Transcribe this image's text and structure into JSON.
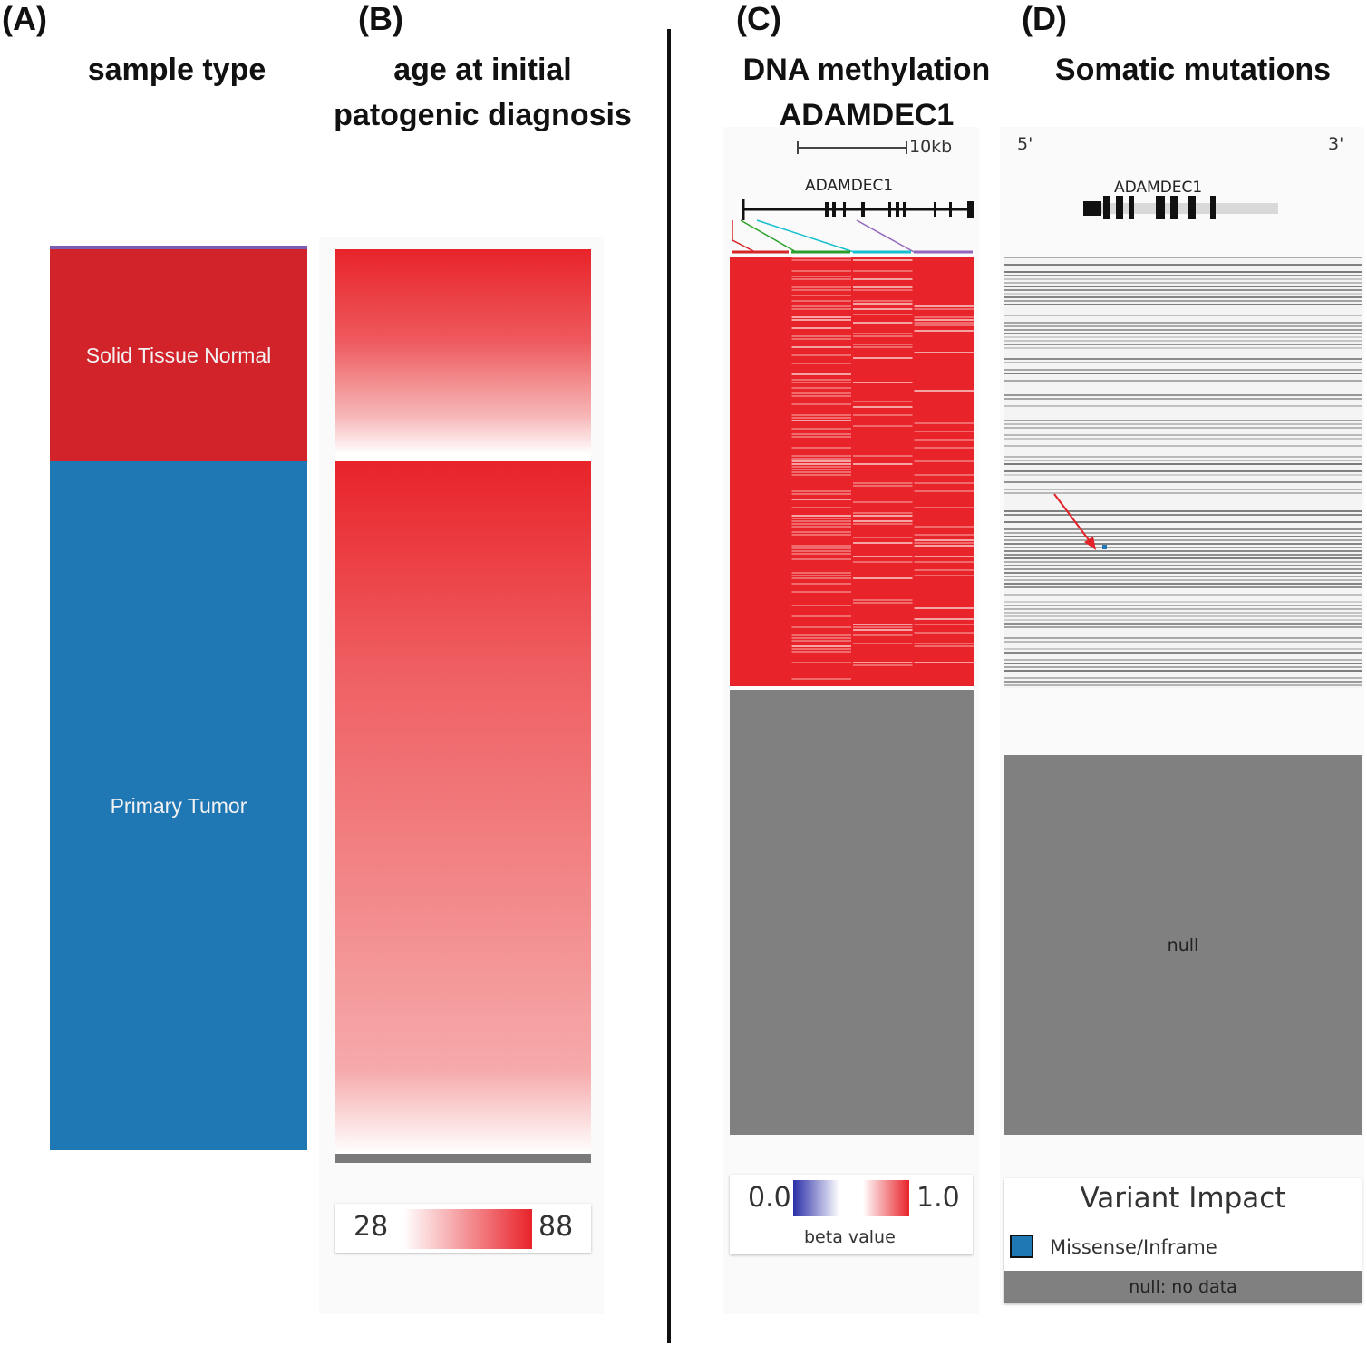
{
  "panels": {
    "a": {
      "letter": "(A)",
      "title": "sample type"
    },
    "b": {
      "letter": "(B)",
      "title_line1": "age at initial",
      "title_line2": "patogenic diagnosis"
    },
    "c": {
      "letter": "(C)",
      "title_line1": "DNA methylation",
      "title_line2": "ADAMDEC1"
    },
    "d": {
      "letter": "(D)",
      "title": "Somatic mutations"
    }
  },
  "chart_data": [
    {
      "type": "heatmap",
      "title": "sample type",
      "categories": [
        "Solid Tissue Normal",
        "Primary Tumor"
      ],
      "proportions": [
        0.235,
        0.765
      ],
      "colors": {
        "Solid Tissue Normal": "#d2232a",
        "Primary Tumor": "#1f77b4"
      }
    },
    {
      "type": "heatmap",
      "title": "age at initial patogenic diagnosis",
      "legend": {
        "min_label": "28",
        "max_label": "88",
        "min": 28,
        "max": 88
      },
      "groups": [
        "Solid Tissue Normal",
        "Primary Tumor"
      ],
      "value_range": [
        28,
        88
      ]
    },
    {
      "type": "heatmap",
      "title": "DNA methylation ADAMDEC1",
      "gene": "ADAMDEC1",
      "scale_label": "10kb",
      "probe_columns": 4,
      "legend": {
        "min_label": "0.0",
        "max_label": "1.0",
        "caption": "beta value",
        "min": 0.0,
        "max": 1.0
      },
      "no_data_color": "#808080"
    },
    {
      "type": "heatmap",
      "title": "Somatic mutations",
      "gene": "ADAMDEC1",
      "five_prime": "5'",
      "three_prime": "3'",
      "null_label": "null",
      "legend": {
        "title": "Variant Impact",
        "items": [
          {
            "label": "Missense/Inframe",
            "color": "#1f77b4"
          }
        ],
        "null_entry": "null: no data"
      }
    }
  ],
  "colors": {
    "red": "#e8232a",
    "blue": "#1f77b4",
    "gray": "#808080",
    "methyl_low": "#2b2fa8"
  }
}
